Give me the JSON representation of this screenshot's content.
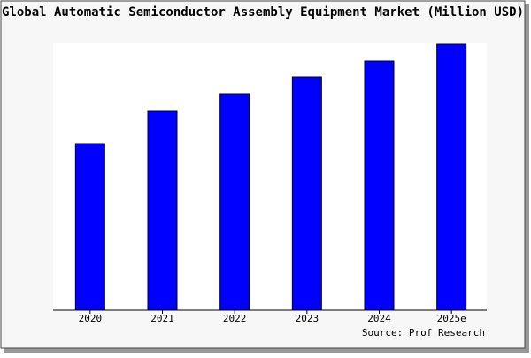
{
  "chart_data": {
    "type": "bar",
    "title": "Global Automatic Semiconductor Assembly Equipment Market (Million USD)",
    "categories": [
      "2020",
      "2021",
      "2022",
      "2023",
      "2024",
      "2025e"
    ],
    "values": [
      188,
      225,
      244,
      263,
      281,
      300
    ],
    "color": "#0000ff",
    "source": "Source: Prof Research"
  }
}
